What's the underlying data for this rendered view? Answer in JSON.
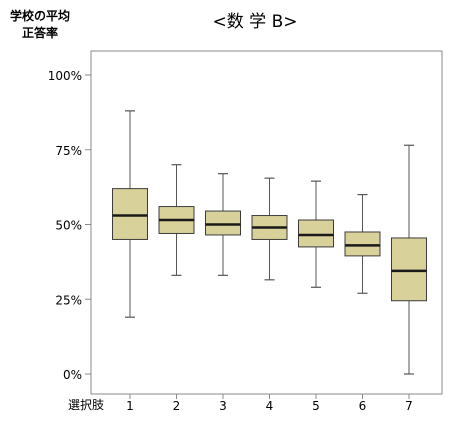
{
  "chart_data": {
    "type": "boxplot",
    "title": "<数 学 B>",
    "ylabel_lines": [
      "学校の平均",
      "正答率"
    ],
    "xlabel": "選択肢",
    "y_ticks": [
      "0%",
      "25%",
      "50%",
      "75%",
      "100%"
    ],
    "y_tick_values": [
      0,
      25,
      50,
      75,
      100
    ],
    "ylim": [
      0,
      100
    ],
    "grid": false,
    "categories": [
      "1",
      "2",
      "3",
      "4",
      "5",
      "6",
      "7"
    ],
    "boxes": [
      {
        "category": "1",
        "min": 19,
        "q1": 45,
        "median": 53,
        "q3": 62,
        "max": 88
      },
      {
        "category": "2",
        "min": 33,
        "q1": 47,
        "median": 51.5,
        "q3": 56,
        "max": 70
      },
      {
        "category": "3",
        "min": 33,
        "q1": 46.5,
        "median": 50,
        "q3": 54.5,
        "max": 67
      },
      {
        "category": "4",
        "min": 31.5,
        "q1": 45,
        "median": 49,
        "q3": 53,
        "max": 65.5
      },
      {
        "category": "5",
        "min": 29,
        "q1": 42.5,
        "median": 46.5,
        "q3": 51.5,
        "max": 64.5
      },
      {
        "category": "6",
        "min": 27,
        "q1": 39.5,
        "median": 43,
        "q3": 47.5,
        "max": 60
      },
      {
        "category": "7",
        "min": 0,
        "q1": 24.5,
        "median": 34.5,
        "q3": 45.5,
        "max": 76.5
      }
    ],
    "colors": {
      "box_fill": "#d8d19a",
      "box_stroke": "#3c3c3c",
      "median": "#1a1a1a",
      "whisker": "#555555",
      "frame": "#8a8a8a"
    }
  }
}
